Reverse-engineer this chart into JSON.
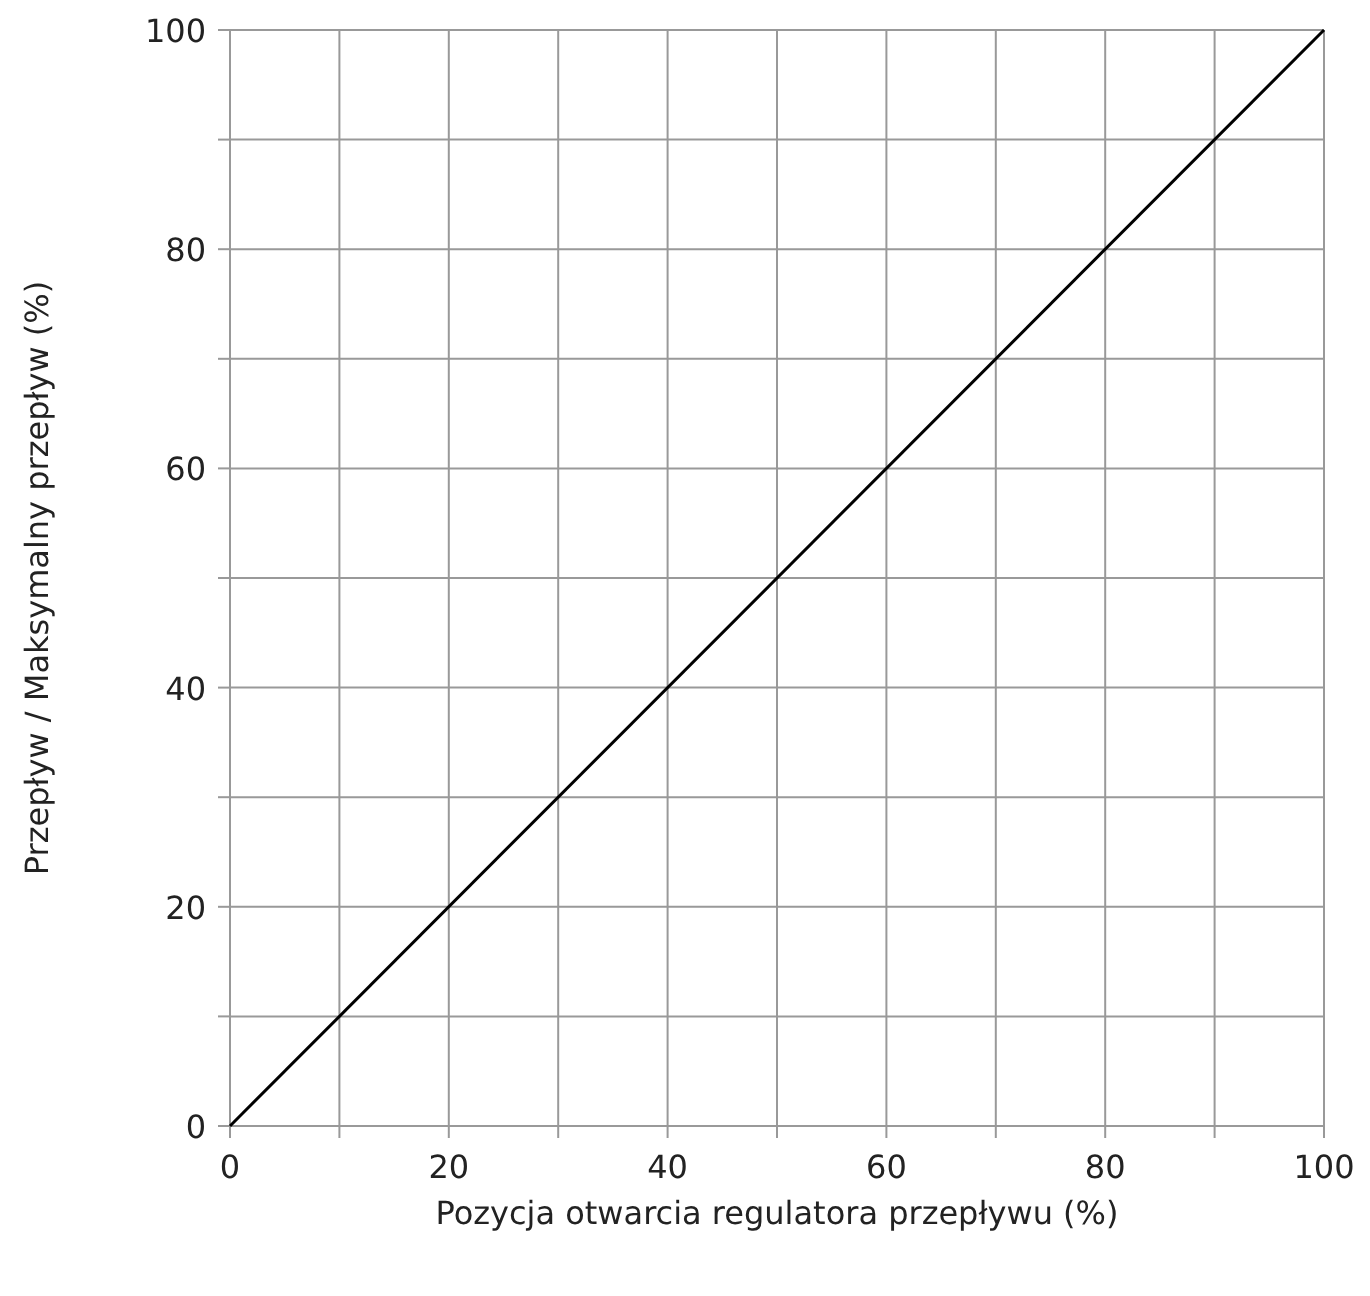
{
  "chart_data": {
    "type": "line",
    "xlabel": "Pozycja otwarcia regulatora przepływu (%)",
    "ylabel": "Przepływ / Maksymalny przepływ (%)",
    "x": [
      0,
      100
    ],
    "series": [
      {
        "color": "#000000",
        "values": [
          0,
          100
        ]
      }
    ],
    "xlim": [
      0,
      100
    ],
    "ylim": [
      0,
      100
    ],
    "xticks": [
      0,
      {
        "value": 10,
        "label": null
      },
      20,
      {
        "value": 30,
        "label": null
      },
      40,
      {
        "value": 50,
        "label": null
      },
      60,
      {
        "value": 70,
        "label": null
      },
      80,
      {
        "value": 90,
        "label": null
      },
      100
    ],
    "yticks": [
      0,
      {
        "value": 10,
        "label": null
      },
      20,
      {
        "value": 30,
        "label": null
      },
      40,
      {
        "value": 50,
        "label": null
      },
      60,
      {
        "value": 70,
        "label": null
      },
      80,
      {
        "value": 90,
        "label": null
      },
      100
    ],
    "grid": true,
    "marker": "none",
    "line_style": "solid"
  }
}
